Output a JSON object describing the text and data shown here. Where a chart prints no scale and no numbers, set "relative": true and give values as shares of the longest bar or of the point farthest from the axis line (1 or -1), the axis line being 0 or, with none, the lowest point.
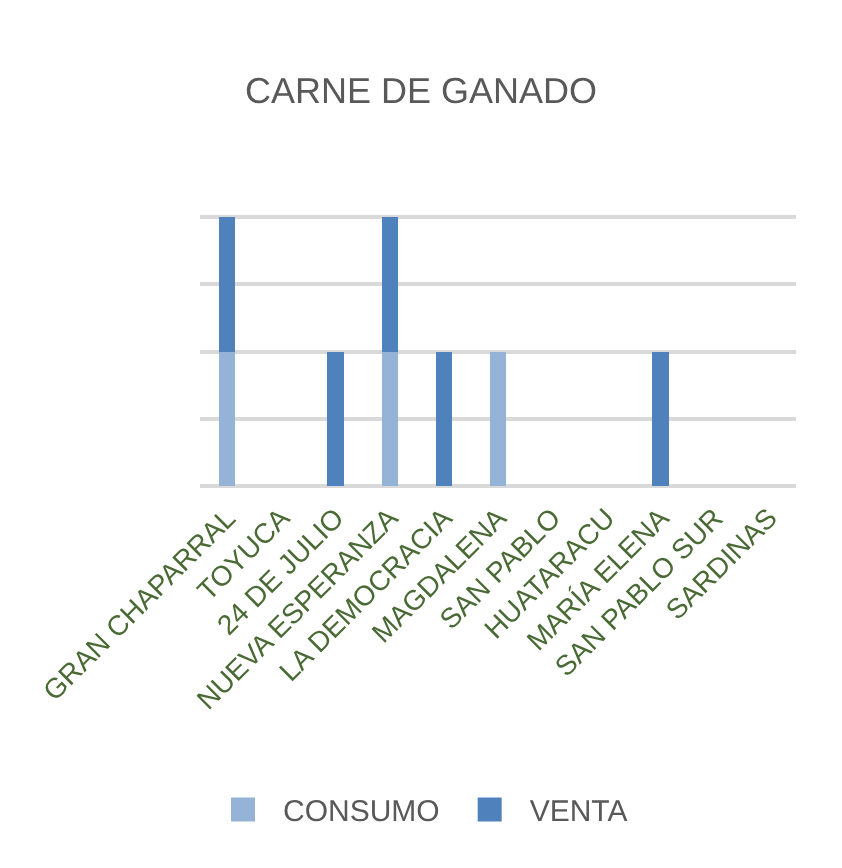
{
  "chart_data": {
    "type": "bar",
    "title": "CARNE DE GANADO",
    "categories": [
      "GRAN CHAPARRAL",
      "TOYUCA",
      "24 DE JULIO",
      "NUEVA ESPERANZA",
      "LA DEMOCRACIA",
      "MAGDALENA",
      "SAN PABLO",
      "HUATARACU",
      "MARÍA ELENA",
      "SAN PABLO SUR",
      "SARDINAS"
    ],
    "series": [
      {
        "name": "CONSUMO",
        "color": "#95b3d7",
        "values": [
          0.5,
          0,
          0,
          0.5,
          0,
          0.5,
          0,
          0,
          0,
          0,
          0
        ]
      },
      {
        "name": "VENTA",
        "color": "#4f81bd",
        "values": [
          0.5,
          0,
          0.5,
          0.5,
          0.5,
          0,
          0,
          0,
          0.5,
          0,
          0
        ]
      }
    ],
    "stacked": true,
    "relative": true,
    "grid": "y",
    "legend": "bottom"
  }
}
